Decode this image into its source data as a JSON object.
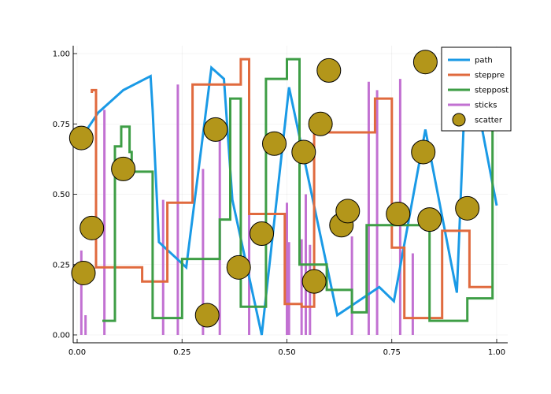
{
  "chart_data": {
    "type": "line",
    "grid": true,
    "legend_position": "top-right",
    "xlim": [
      0,
      1
    ],
    "ylim": [
      0,
      1
    ],
    "x_ticks": [
      0.0,
      0.25,
      0.5,
      0.75,
      1.0
    ],
    "x_tick_labels": [
      "0.00",
      "0.25",
      "0.50",
      "0.75",
      "1.00"
    ],
    "y_ticks": [
      0.0,
      0.25,
      0.5,
      0.75,
      1.0
    ],
    "y_tick_labels": [
      "0.00",
      "0.25",
      "0.50",
      "0.75",
      "1.00"
    ],
    "series": [
      {
        "name": "path",
        "kind": "path",
        "color": "#1a9ae6",
        "x": [
          0.01,
          0.05,
          0.11,
          0.175,
          0.18,
          0.195,
          0.26,
          0.32,
          0.35,
          0.37,
          0.44,
          0.505,
          0.62,
          0.72,
          0.755,
          0.83,
          0.905,
          0.925,
          0.945,
          1.0
        ],
        "y": [
          0.7,
          0.79,
          0.87,
          0.92,
          0.8,
          0.33,
          0.24,
          0.95,
          0.91,
          0.48,
          0.0,
          0.88,
          0.07,
          0.17,
          0.12,
          0.73,
          0.15,
          0.88,
          0.89,
          0.46
        ]
      },
      {
        "name": "steppre",
        "kind": "steppre",
        "color": "#e06a3e",
        "x": [
          0.035,
          0.045,
          0.155,
          0.215,
          0.275,
          0.39,
          0.41,
          0.495,
          0.535,
          0.565,
          0.71,
          0.75,
          0.78,
          0.87,
          0.935,
          0.99
        ],
        "y": [
          0.86,
          0.87,
          0.24,
          0.19,
          0.47,
          0.89,
          0.98,
          0.43,
          0.11,
          0.1,
          0.72,
          0.84,
          0.31,
          0.06,
          0.37,
          0.17
        ]
      },
      {
        "name": "steppost",
        "kind": "steppost",
        "color": "#3e9e46",
        "x": [
          0.06,
          0.09,
          0.105,
          0.125,
          0.13,
          0.18,
          0.25,
          0.34,
          0.365,
          0.39,
          0.45,
          0.5,
          0.53,
          0.595,
          0.655,
          0.69,
          0.84,
          0.93,
          0.99
        ],
        "y": [
          0.05,
          0.67,
          0.74,
          0.65,
          0.58,
          0.06,
          0.27,
          0.41,
          0.84,
          0.1,
          0.91,
          0.98,
          0.25,
          0.16,
          0.08,
          0.39,
          0.05,
          0.13,
          0.78
        ]
      },
      {
        "name": "sticks",
        "kind": "sticks",
        "color": "#c271d2",
        "x": [
          0.01,
          0.02,
          0.065,
          0.205,
          0.24,
          0.3,
          0.34,
          0.41,
          0.5,
          0.505,
          0.535,
          0.545,
          0.555,
          0.655,
          0.695,
          0.715,
          0.77,
          0.8
        ],
        "y": [
          0.3,
          0.07,
          0.8,
          0.48,
          0.89,
          0.59,
          0.71,
          0.84,
          0.47,
          0.33,
          0.34,
          0.5,
          0.32,
          0.35,
          0.9,
          0.87,
          0.91,
          0.29
        ]
      },
      {
        "name": "scatter",
        "kind": "scatter",
        "color": "#b3961a",
        "x": [
          0.01,
          0.015,
          0.035,
          0.11,
          0.31,
          0.33,
          0.385,
          0.44,
          0.47,
          0.54,
          0.565,
          0.58,
          0.6,
          0.63,
          0.645,
          0.765,
          0.825,
          0.83,
          0.84,
          0.93
        ],
        "y": [
          0.7,
          0.22,
          0.38,
          0.59,
          0.07,
          0.73,
          0.24,
          0.36,
          0.68,
          0.65,
          0.19,
          0.75,
          0.94,
          0.39,
          0.44,
          0.43,
          0.65,
          0.97,
          0.41,
          0.45
        ]
      }
    ]
  }
}
